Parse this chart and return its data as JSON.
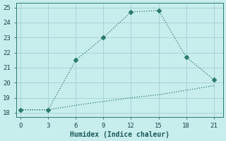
{
  "line1_x": [
    0,
    3,
    6,
    9,
    12,
    15,
    18,
    21
  ],
  "line1_y": [
    18.2,
    18.2,
    21.5,
    23.0,
    24.7,
    24.8,
    21.7,
    20.2
  ],
  "line2_x": [
    0,
    3,
    6,
    9,
    12,
    15,
    18,
    21
  ],
  "line2_y": [
    18.2,
    18.2,
    18.5,
    18.75,
    19.0,
    19.2,
    19.5,
    19.8
  ],
  "line_color": "#2a7a6a",
  "xlabel": "Humidex (Indice chaleur)",
  "xlim": [
    -0.5,
    22
  ],
  "ylim": [
    17.7,
    25.3
  ],
  "xticks": [
    0,
    3,
    6,
    9,
    12,
    15,
    18,
    21
  ],
  "yticks": [
    18,
    19,
    20,
    21,
    22,
    23,
    24,
    25
  ],
  "bg_color": "#c8eded",
  "grid_color": "#a8d4d4",
  "marker_style": "D",
  "marker_size": 3
}
